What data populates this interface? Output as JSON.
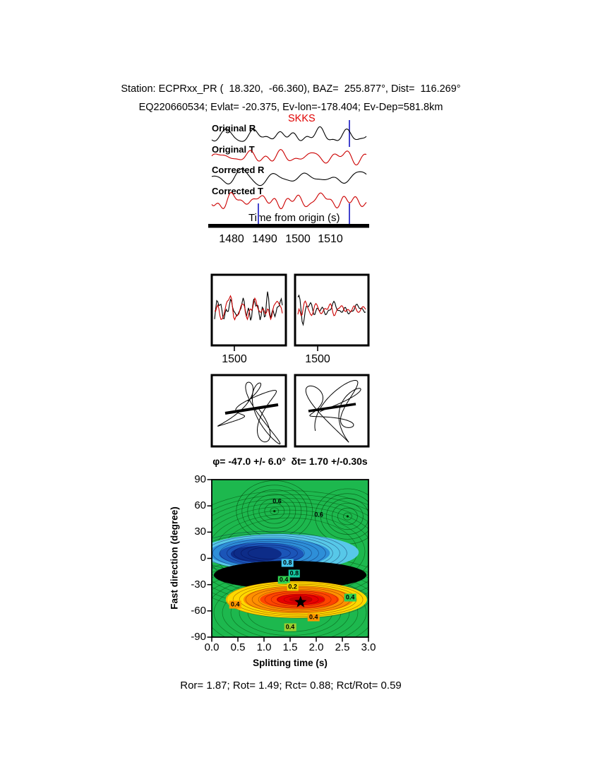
{
  "header": {
    "line1": "Station: ECPRxx_PR (  18.320,  -66.360), BAZ=  255.877°, Dist=  116.269°",
    "line2": "EQ220660534; Evlat= -20.375, Ev-lon=-178.404; Ev-Dep=581.8km"
  },
  "waveform_panel": {
    "phase_label": "SKKS",
    "trace_labels": [
      "Original R",
      "Original T",
      "Corrected R",
      "Corrected T"
    ],
    "axis_label": "Time from origin (s)",
    "tick_labels": [
      "1480",
      "1490",
      "1500",
      "1510"
    ]
  },
  "zoom_panels": {
    "left": {
      "tick_label": "1500"
    },
    "right": {
      "tick_label": "1500"
    }
  },
  "splitting_plot": {
    "title": "φ= -47.0 +/- 6.0°  δt= 1.70 +/-0.30s",
    "ylabel": "Fast direction (degree)",
    "xlabel": "Splitting time (s)",
    "ytick_labels": [
      "90",
      "60",
      "30",
      "0",
      "-30",
      "-60",
      "-90"
    ],
    "xtick_labels": [
      "0.0",
      "0.5",
      "1.0",
      "1.5",
      "2.0",
      "2.5",
      "3.0"
    ]
  },
  "footer": {
    "stats": "Ror= 1.87; Rot= 1.49; Rct= 0.88; Rct/Rot= 0.59"
  },
  "colors": {
    "trace_black": "#000000",
    "trace_red": "#cc0000",
    "window_marker": "#4343cd",
    "phase_label": "#e00000",
    "surface_green": "#1db84e",
    "surface_blue": "#0d2c88",
    "surface_black": "#000000",
    "surface_red": "#e80000",
    "surface_yellow": "#ffd800",
    "surface_orange": "#ff9000"
  },
  "chart_data": [
    {
      "type": "line",
      "title": "SKKS radial/transverse waveforms before and after correction",
      "xlabel": "Time from origin (s)",
      "x_ticks": [
        1480,
        1490,
        1500,
        1510
      ],
      "x_range_s": [
        1473,
        1522
      ],
      "series": [
        {
          "name": "Original R",
          "color": "#000000"
        },
        {
          "name": "Original T",
          "color": "#cc0000"
        },
        {
          "name": "Corrected R",
          "color": "#000000"
        },
        {
          "name": "Corrected T",
          "color": "#cc0000"
        }
      ],
      "phase_pick": "SKKS",
      "window_markers_s": [
        1488,
        1516
      ]
    },
    {
      "type": "line",
      "title": "Windowed waveform comparison (fast/slow overlaid)",
      "panels": [
        {
          "x_tick": 1500
        },
        {
          "x_tick": 1500
        }
      ]
    },
    {
      "type": "scatter",
      "title": "Particle motion hodograms (original / corrected)",
      "panels": 2
    },
    {
      "type": "heatmap",
      "title": "Splitting parameter error surface",
      "xlabel": "Splitting time (s)",
      "ylabel": "Fast direction (degree)",
      "xlim": [
        0.0,
        3.0
      ],
      "ylim": [
        -90,
        90
      ],
      "xticks": [
        0.0,
        0.5,
        1.0,
        1.5,
        2.0,
        2.5,
        3.0
      ],
      "yticks": [
        90,
        60,
        30,
        0,
        -30,
        -60,
        -90
      ],
      "best_fit": {
        "phi_deg": -47.0,
        "phi_err_deg": 6.0,
        "dt_s": 1.7,
        "dt_err_s": 0.3
      },
      "star_marker": {
        "dt_s": 1.7,
        "phi_deg": -50.0
      },
      "contour_levels_labeled": [
        0.2,
        0.4,
        0.6,
        0.8
      ],
      "contour_labels": [
        {
          "text": "0.6",
          "dt": 1.25,
          "phi": 65,
          "bg": "none"
        },
        {
          "text": "0.6",
          "dt": 2.05,
          "phi": 50,
          "bg": "none"
        },
        {
          "text": "0.8",
          "dt": 1.45,
          "phi": -5,
          "bg": "#45c8f0"
        },
        {
          "text": "0.8",
          "dt": 1.58,
          "phi": -17,
          "bg": "#15c8a0"
        },
        {
          "text": "0.4",
          "dt": 1.38,
          "phi": -25,
          "bg": "#30d050"
        },
        {
          "text": "0.2",
          "dt": 1.55,
          "phi": -33,
          "bg": "#f0d000"
        },
        {
          "text": "0.4",
          "dt": 0.45,
          "phi": -53,
          "bg": "#ff9800"
        },
        {
          "text": "0.4",
          "dt": 2.65,
          "phi": -45,
          "bg": "#30d050"
        },
        {
          "text": "0.4",
          "dt": 1.95,
          "phi": -67,
          "bg": "#ff9800"
        },
        {
          "text": "0.4",
          "dt": 1.5,
          "phi": -79,
          "bg": "#a0d030"
        }
      ]
    },
    {
      "type": "table",
      "title": "Quality ratios",
      "values": {
        "Ror": 1.87,
        "Rot": 1.49,
        "Rct": 0.88,
        "Rct_over_Rot": 0.59
      }
    }
  ]
}
